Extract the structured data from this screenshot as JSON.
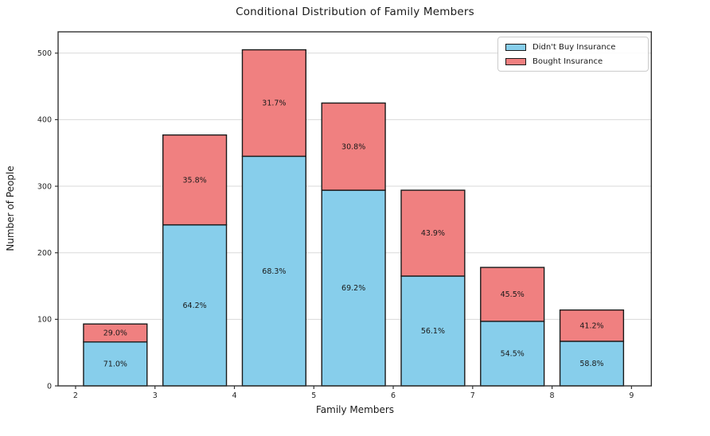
{
  "chart_data": {
    "type": "bar",
    "stacked": true,
    "title": "Conditional Distribution of Family Members",
    "xlabel": "Family Members",
    "ylabel": "Number of People",
    "categories": [
      2.5,
      3.5,
      4.5,
      5.5,
      6.5,
      7.5,
      8.5
    ],
    "bar_width": 0.8,
    "x_tick_values": [
      2,
      3,
      4,
      5,
      6,
      7,
      8,
      9
    ],
    "x_tick_labels": [
      "2",
      "3",
      "4",
      "5",
      "6",
      "7",
      "8",
      "9"
    ],
    "y_tick_values": [
      0,
      100,
      200,
      300,
      400,
      500
    ],
    "y_tick_labels": [
      "0",
      "100",
      "200",
      "300",
      "400",
      "500"
    ],
    "xlim": [
      1.78,
      9.25
    ],
    "ylim": [
      0,
      532
    ],
    "grid": "horizontal",
    "legend_position": "upper-right",
    "series": [
      {
        "name": "Didn't Buy Insurance",
        "color": "#87CEEB",
        "values": [
          66,
          242,
          345,
          294,
          165,
          97,
          67
        ],
        "labels": [
          "71.0%",
          "64.2%",
          "68.3%",
          "69.2%",
          "56.1%",
          "54.5%",
          "58.8%"
        ]
      },
      {
        "name": "Bought Insurance",
        "color": "#F08080",
        "values": [
          27,
          135,
          160,
          131,
          129,
          81,
          47
        ],
        "labels": [
          "29.0%",
          "35.8%",
          "31.7%",
          "30.8%",
          "43.9%",
          "45.5%",
          "41.2%"
        ]
      }
    ],
    "totals": [
      93,
      377,
      505,
      425,
      294,
      178,
      114
    ],
    "colors": {
      "bar_edge": "#1a1a1a",
      "grid_line": "#d9d9d9",
      "spine": "#333333",
      "tick_text": "#262626",
      "label_text": "#1a1a1a"
    }
  }
}
